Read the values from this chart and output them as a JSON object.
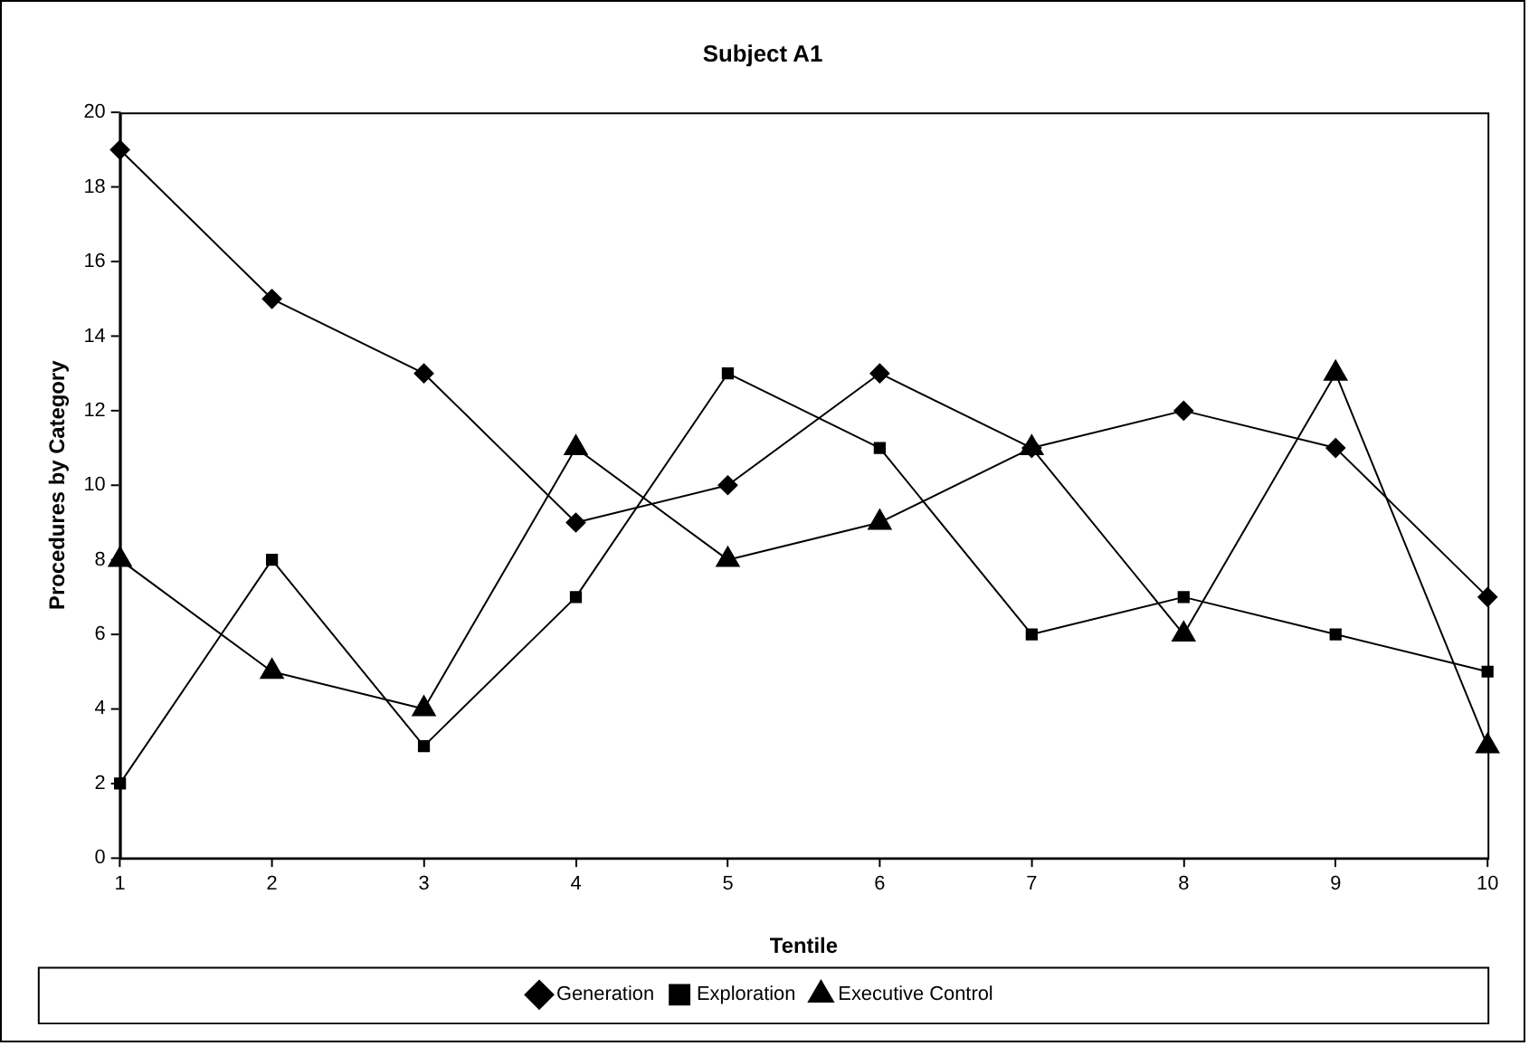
{
  "chart_data": {
    "type": "line",
    "title": "Subject A1",
    "xlabel": "Tentile",
    "ylabel": "Procedures by Category",
    "categories": [
      "1",
      "2",
      "3",
      "4",
      "5",
      "6",
      "7",
      "8",
      "9",
      "10"
    ],
    "series": [
      {
        "name": "Generation",
        "color": "#000000",
        "marker": "diamond",
        "values": [
          19,
          15,
          13,
          9,
          10,
          13,
          11,
          12,
          11,
          7
        ]
      },
      {
        "name": "Exploration",
        "color": "#000000",
        "marker": "square",
        "values": [
          2,
          8,
          3,
          7,
          13,
          11,
          6,
          7,
          6,
          5
        ]
      },
      {
        "name": "Executive Control",
        "color": "#000000",
        "marker": "triangle",
        "values": [
          8,
          5,
          4,
          11,
          8,
          9,
          11,
          6,
          13,
          3
        ]
      }
    ],
    "ylim": [
      0,
      20
    ],
    "yticks": [
      0,
      2,
      4,
      6,
      8,
      10,
      12,
      14,
      16,
      18,
      20
    ],
    "grid": false,
    "legend": "bottom",
    "line_style": "solid"
  }
}
